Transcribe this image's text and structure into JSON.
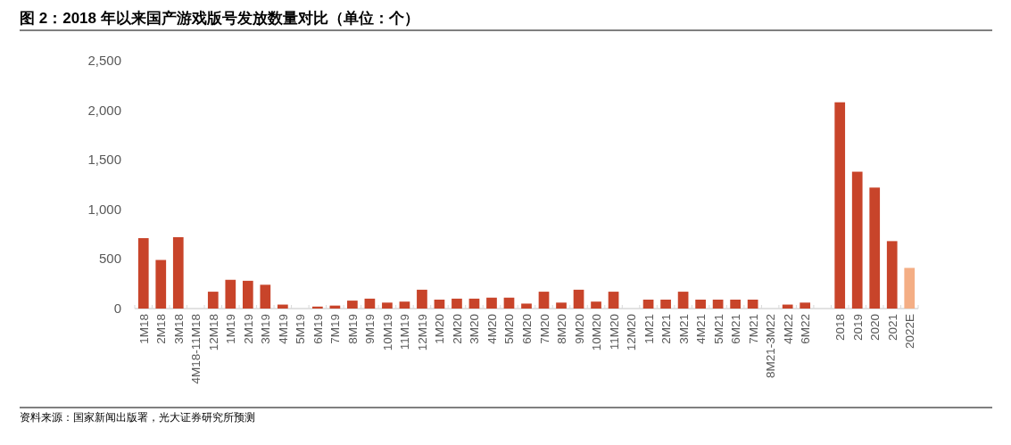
{
  "chart_data": {
    "type": "bar",
    "title": "图 2：2018 年以来国产游戏版号发放数量对比（单位：个）",
    "categories": [
      "1M18",
      "2M18",
      "3M18",
      "4M18-11M18",
      "12M18",
      "1M19",
      "2M19",
      "3M19",
      "4M19",
      "5M19",
      "6M19",
      "7M19",
      "8M19",
      "9M19",
      "10M19",
      "11M19",
      "12M19",
      "1M20",
      "2M20",
      "3M20",
      "4M20",
      "5M20",
      "6M20",
      "7M20",
      "8M20",
      "9M20",
      "10M20",
      "11M20",
      "12M20",
      "1M21",
      "2M21",
      "3M21",
      "4M21",
      "5M21",
      "6M21",
      "7M21",
      "8M21-3M22",
      "4M22",
      "6M22",
      null,
      "2018",
      "2019",
      "2020",
      "2021",
      "2022E"
    ],
    "series": [
      {
        "color": "#c8442a",
        "values": [
          710,
          490,
          720,
          0,
          170,
          290,
          280,
          240,
          40,
          0,
          20,
          30,
          80,
          100,
          60,
          70,
          190,
          90,
          100,
          100,
          110,
          110,
          50,
          170,
          60,
          190,
          70,
          170,
          0,
          90,
          90,
          170,
          90,
          90,
          90,
          90,
          0,
          40,
          60,
          null,
          2080,
          1380,
          1220,
          680,
          null
        ]
      },
      {
        "color": "#f4ae85",
        "values": [
          null,
          null,
          null,
          null,
          null,
          null,
          null,
          null,
          null,
          null,
          null,
          null,
          null,
          null,
          null,
          null,
          null,
          null,
          null,
          null,
          null,
          null,
          null,
          null,
          null,
          null,
          null,
          null,
          null,
          null,
          null,
          null,
          null,
          null,
          null,
          null,
          null,
          null,
          null,
          null,
          null,
          null,
          null,
          null,
          410
        ]
      }
    ],
    "ylim": [
      0,
      2500
    ],
    "yticks": [
      {
        "value": 0,
        "label": "0"
      },
      {
        "value": 500,
        "label": "500"
      },
      {
        "value": 1000,
        "label": "1,000"
      },
      {
        "value": 1500,
        "label": "1,500"
      },
      {
        "value": 2000,
        "label": "2,000"
      },
      {
        "value": 2500,
        "label": "2,500"
      }
    ],
    "grid": false,
    "annotations": [
      "资料来源：国家新闻出版署，光大证券研究所预测"
    ]
  }
}
